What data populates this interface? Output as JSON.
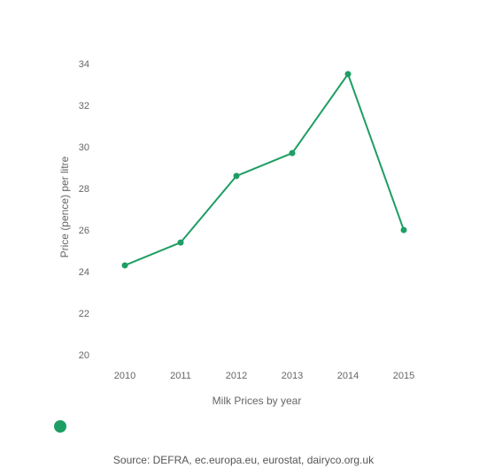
{
  "chart_data": {
    "type": "line",
    "title": "",
    "xlabel": "Milk Prices by year",
    "ylabel": "Price (pence) per litre",
    "x": [
      "2010",
      "2011",
      "2012",
      "2013",
      "2014",
      "2015"
    ],
    "series": [
      {
        "values": [
          24.3,
          25.4,
          28.6,
          29.7,
          33.5,
          26.0
        ]
      }
    ],
    "ylim": [
      20,
      34
    ],
    "yticks": [
      20,
      22,
      24,
      26,
      28,
      30,
      32,
      34
    ],
    "grid": false,
    "legend": "bottom-left",
    "color": "#1e9e63"
  },
  "source": "Source: DEFRA, ec.europa.eu, eurostat, dairyco.org.uk"
}
